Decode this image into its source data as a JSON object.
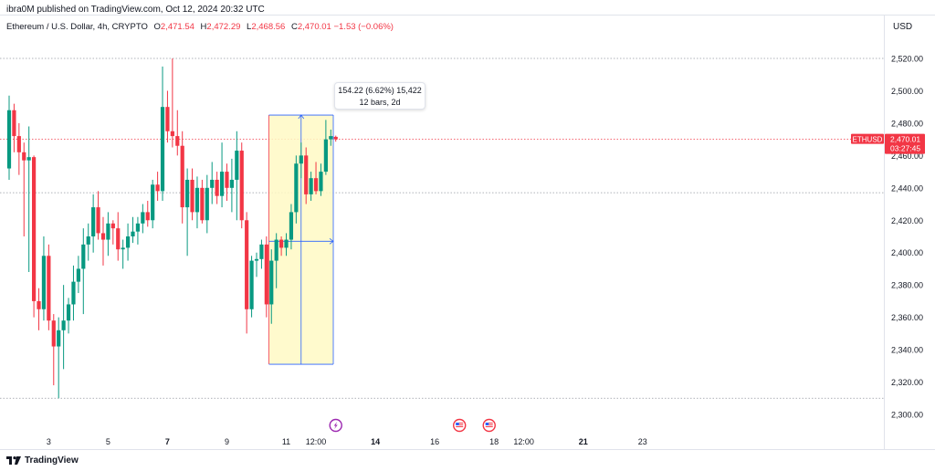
{
  "header": {
    "published": "ibra0M published on TradingView.com, Oct 12, 2024 20:32 UTC",
    "symbol_desc": "Ethereum / U.S. Dollar, 4h, CRYPTO",
    "ohlc": {
      "o_label": "O",
      "o": "2,471.54",
      "h_label": "H",
      "h": "2,472.29",
      "l_label": "L",
      "l": "2,468.56",
      "c_label": "C",
      "c": "2,470.01",
      "change": "−1.53 (−0.06%)"
    },
    "currency": "USD"
  },
  "measure_tooltip": {
    "line1": "154.22 (6.62%) 15,422",
    "line2": "12 bars, 2d"
  },
  "price_tag": {
    "symbol": "ETHUSD",
    "price": "2,470.01",
    "countdown": "03:27:45"
  },
  "footer": {
    "brand": "TradingView"
  },
  "colors": {
    "up": "#089981",
    "down": "#f23645",
    "measure_fill": "#fff9c4",
    "measure_border": "#2962ff"
  },
  "chart_data": {
    "type": "candlestick",
    "y_axis": {
      "ticks": [
        2300,
        2320,
        2340,
        2360,
        2380,
        2400,
        2420,
        2440,
        2460,
        2480,
        2500,
        2520
      ],
      "tick_labels": [
        "2,300.00",
        "2,320.00",
        "2,340.00",
        "2,360.00",
        "2,380.00",
        "2,400.00",
        "2,420.00",
        "2,440.00",
        "2,460.00",
        "2,480.00",
        "2,500.00",
        "2,520.00"
      ],
      "range": [
        2292,
        2530
      ]
    },
    "x_axis": {
      "tick_labels": [
        "3",
        "5",
        "7",
        "9",
        "11",
        "12:00",
        "14",
        "16",
        "18",
        "12:00",
        "21",
        "23"
      ],
      "bold": [
        false,
        false,
        true,
        false,
        false,
        false,
        true,
        false,
        false,
        false,
        true,
        false
      ],
      "tick_bar_index": [
        8,
        20,
        32,
        44,
        56,
        62,
        74,
        86,
        98,
        104,
        116,
        128
      ]
    },
    "reference_lines": [
      2520,
      2437,
      2310
    ],
    "candles": [
      {
        "o": 2452,
        "h": 2497,
        "l": 2445,
        "c": 2488
      },
      {
        "o": 2488,
        "h": 2492,
        "l": 2462,
        "c": 2472
      },
      {
        "o": 2472,
        "h": 2480,
        "l": 2448,
        "c": 2462
      },
      {
        "o": 2462,
        "h": 2468,
        "l": 2410,
        "c": 2457
      },
      {
        "o": 2457,
        "h": 2478,
        "l": 2388,
        "c": 2459
      },
      {
        "o": 2459,
        "h": 2460,
        "l": 2360,
        "c": 2370
      },
      {
        "o": 2370,
        "h": 2378,
        "l": 2352,
        "c": 2365
      },
      {
        "o": 2365,
        "h": 2410,
        "l": 2358,
        "c": 2398
      },
      {
        "o": 2398,
        "h": 2405,
        "l": 2352,
        "c": 2358
      },
      {
        "o": 2358,
        "h": 2362,
        "l": 2318,
        "c": 2342
      },
      {
        "o": 2342,
        "h": 2360,
        "l": 2310,
        "c": 2352
      },
      {
        "o": 2352,
        "h": 2380,
        "l": 2328,
        "c": 2358
      },
      {
        "o": 2358,
        "h": 2372,
        "l": 2350,
        "c": 2368
      },
      {
        "o": 2368,
        "h": 2392,
        "l": 2358,
        "c": 2382
      },
      {
        "o": 2382,
        "h": 2398,
        "l": 2375,
        "c": 2390
      },
      {
        "o": 2390,
        "h": 2415,
        "l": 2362,
        "c": 2405
      },
      {
        "o": 2405,
        "h": 2418,
        "l": 2395,
        "c": 2410
      },
      {
        "o": 2410,
        "h": 2436,
        "l": 2400,
        "c": 2428
      },
      {
        "o": 2428,
        "h": 2438,
        "l": 2408,
        "c": 2412
      },
      {
        "o": 2412,
        "h": 2422,
        "l": 2392,
        "c": 2408
      },
      {
        "o": 2408,
        "h": 2425,
        "l": 2398,
        "c": 2418
      },
      {
        "o": 2418,
        "h": 2420,
        "l": 2405,
        "c": 2415
      },
      {
        "o": 2415,
        "h": 2425,
        "l": 2395,
        "c": 2402
      },
      {
        "o": 2402,
        "h": 2408,
        "l": 2390,
        "c": 2403
      },
      {
        "o": 2403,
        "h": 2418,
        "l": 2395,
        "c": 2410
      },
      {
        "o": 2410,
        "h": 2422,
        "l": 2406,
        "c": 2413
      },
      {
        "o": 2413,
        "h": 2422,
        "l": 2405,
        "c": 2418
      },
      {
        "o": 2418,
        "h": 2430,
        "l": 2412,
        "c": 2425
      },
      {
        "o": 2425,
        "h": 2432,
        "l": 2416,
        "c": 2420
      },
      {
        "o": 2420,
        "h": 2445,
        "l": 2415,
        "c": 2442
      },
      {
        "o": 2442,
        "h": 2450,
        "l": 2432,
        "c": 2438
      },
      {
        "o": 2438,
        "h": 2515,
        "l": 2432,
        "c": 2490
      },
      {
        "o": 2490,
        "h": 2500,
        "l": 2468,
        "c": 2475
      },
      {
        "o": 2475,
        "h": 2520,
        "l": 2465,
        "c": 2472
      },
      {
        "o": 2472,
        "h": 2488,
        "l": 2460,
        "c": 2466
      },
      {
        "o": 2466,
        "h": 2475,
        "l": 2418,
        "c": 2428
      },
      {
        "o": 2428,
        "h": 2452,
        "l": 2398,
        "c": 2445
      },
      {
        "o": 2445,
        "h": 2452,
        "l": 2420,
        "c": 2425
      },
      {
        "o": 2425,
        "h": 2447,
        "l": 2415,
        "c": 2440
      },
      {
        "o": 2440,
        "h": 2445,
        "l": 2418,
        "c": 2420
      },
      {
        "o": 2420,
        "h": 2448,
        "l": 2412,
        "c": 2440
      },
      {
        "o": 2440,
        "h": 2456,
        "l": 2430,
        "c": 2445
      },
      {
        "o": 2445,
        "h": 2450,
        "l": 2430,
        "c": 2435
      },
      {
        "o": 2435,
        "h": 2468,
        "l": 2428,
        "c": 2450
      },
      {
        "o": 2450,
        "h": 2455,
        "l": 2432,
        "c": 2440
      },
      {
        "o": 2440,
        "h": 2458,
        "l": 2425,
        "c": 2445
      },
      {
        "o": 2445,
        "h": 2475,
        "l": 2420,
        "c": 2463
      },
      {
        "o": 2463,
        "h": 2468,
        "l": 2415,
        "c": 2420
      },
      {
        "o": 2420,
        "h": 2425,
        "l": 2350,
        "c": 2365
      },
      {
        "o": 2365,
        "h": 2398,
        "l": 2360,
        "c": 2395
      },
      {
        "o": 2395,
        "h": 2400,
        "l": 2385,
        "c": 2396
      },
      {
        "o": 2396,
        "h": 2408,
        "l": 2390,
        "c": 2405
      },
      {
        "o": 2405,
        "h": 2410,
        "l": 2360,
        "c": 2368
      },
      {
        "o": 2368,
        "h": 2402,
        "l": 2356,
        "c": 2395
      },
      {
        "o": 2395,
        "h": 2412,
        "l": 2378,
        "c": 2408
      },
      {
        "o": 2408,
        "h": 2410,
        "l": 2398,
        "c": 2403
      },
      {
        "o": 2403,
        "h": 2412,
        "l": 2398,
        "c": 2408
      },
      {
        "o": 2408,
        "h": 2430,
        "l": 2402,
        "c": 2425
      },
      {
        "o": 2425,
        "h": 2460,
        "l": 2418,
        "c": 2455
      },
      {
        "o": 2455,
        "h": 2468,
        "l": 2446,
        "c": 2460
      },
      {
        "o": 2460,
        "h": 2465,
        "l": 2430,
        "c": 2436
      },
      {
        "o": 2436,
        "h": 2450,
        "l": 2432,
        "c": 2446
      },
      {
        "o": 2446,
        "h": 2456,
        "l": 2436,
        "c": 2438
      },
      {
        "o": 2438,
        "h": 2455,
        "l": 2435,
        "c": 2450
      },
      {
        "o": 2450,
        "h": 2482,
        "l": 2448,
        "c": 2470
      },
      {
        "o": 2470,
        "h": 2476,
        "l": 2466,
        "c": 2472
      },
      {
        "o": 2471.54,
        "h": 2472.29,
        "l": 2468.56,
        "c": 2470.01
      }
    ],
    "measure": {
      "from_bar": 53,
      "to_bar": 65,
      "price_low": 2331,
      "price_high": 2485,
      "delta": "154.22 (6.62%) 15,422",
      "bars": "12 bars, 2d"
    },
    "event_icons": [
      {
        "bar": 66,
        "name": "flash-event-icon",
        "color": "#9c27b0"
      },
      {
        "bar": 91,
        "name": "us-flag-event-icon",
        "color": "#f23645"
      },
      {
        "bar": 97,
        "name": "us-flag-event-icon",
        "color": "#f23645"
      }
    ]
  }
}
